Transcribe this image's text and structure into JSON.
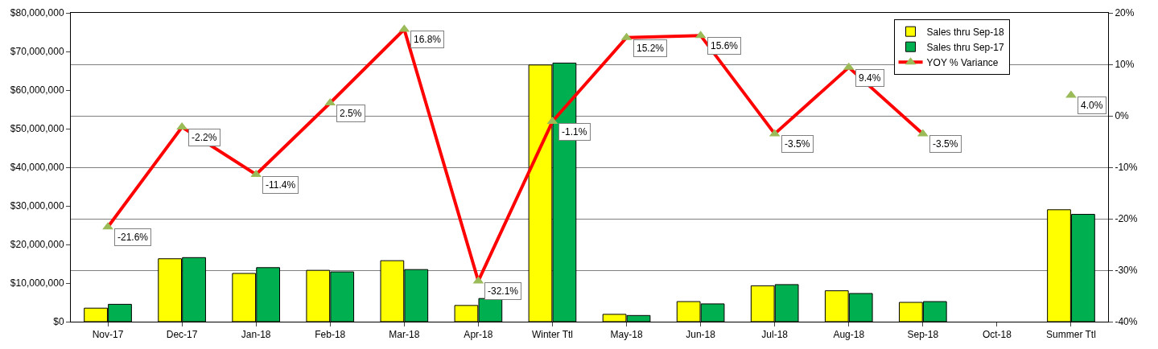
{
  "chart_data": {
    "type": "bar",
    "categories": [
      "Nov-17",
      "Dec-17",
      "Jan-18",
      "Feb-18",
      "Mar-18",
      "Apr-18",
      "Winter Ttl",
      "May-18",
      "Jun-18",
      "Jul-18",
      "Aug-18",
      "Sep-18",
      "Oct-18",
      "Summer Ttl"
    ],
    "series": [
      {
        "name": "Sales thru Sep-18",
        "color": "#ffff00",
        "values": [
          3500000,
          16300000,
          12500000,
          13300000,
          15800000,
          4200000,
          66500000,
          1900000,
          5200000,
          9300000,
          8000000,
          5000000,
          null,
          29000000
        ]
      },
      {
        "name": "Sales thru Sep-17",
        "color": "#00b050",
        "values": [
          4500000,
          16600000,
          14000000,
          12900000,
          13500000,
          6000000,
          67000000,
          1600000,
          4600000,
          9600000,
          7300000,
          5200000,
          null,
          27800000
        ]
      },
      {
        "name": "YOY % Variance",
        "type": "line",
        "axis": "y2",
        "color": "#ff0000",
        "marker": "triangle",
        "colors": [
          "#9bbb59",
          "#9bbb59",
          "#9bbb59",
          "#9bbb59",
          "#9bbb59",
          "#9bbb59",
          "#9bbb59",
          "#9bbb59",
          "#9bbb59",
          "#9bbb59",
          "#9bbb59",
          "#9bbb59",
          "#9bbb59",
          "#9bbb59"
        ],
        "values": [
          -21.6,
          -2.2,
          -11.4,
          2.5,
          16.8,
          -32.1,
          -1.1,
          15.2,
          15.6,
          -3.5,
          9.4,
          -3.5,
          null,
          4.0
        ],
        "value_labels": [
          "-21.6%",
          "-2.2%",
          "-11.4%",
          "2.5%",
          "16.8%",
          "-32.1%",
          "-1.1%",
          "15.2%",
          "15.6%",
          "-3.5%",
          "9.4%",
          "-3.5%",
          null,
          "4.0%"
        ]
      }
    ],
    "ylim": [
      0,
      80000000
    ],
    "yticks": [
      {
        "value": 0,
        "label": "$0"
      },
      {
        "value": 10000000,
        "label": "$10,000,000"
      },
      {
        "value": 20000000,
        "label": "$20,000,000"
      },
      {
        "value": 30000000,
        "label": "$30,000,000"
      },
      {
        "value": 40000000,
        "label": "$40,000,000"
      },
      {
        "value": 50000000,
        "label": "$50,000,000"
      },
      {
        "value": 60000000,
        "label": "$60,000,000"
      },
      {
        "value": 70000000,
        "label": "$70,000,000"
      },
      {
        "value": 80000000,
        "label": "$80,000,000"
      }
    ],
    "y2lim": [
      -40,
      20
    ],
    "y2ticks": [
      {
        "value": -40,
        "label": "-40%"
      },
      {
        "value": -30,
        "label": "-30%"
      },
      {
        "value": -20,
        "label": "-20%"
      },
      {
        "value": -10,
        "label": "-10%"
      },
      {
        "value": 0,
        "label": "0%"
      },
      {
        "value": 10,
        "label": "10%"
      },
      {
        "value": 20,
        "label": "20%"
      }
    ],
    "grid": true,
    "legend": "top right"
  }
}
